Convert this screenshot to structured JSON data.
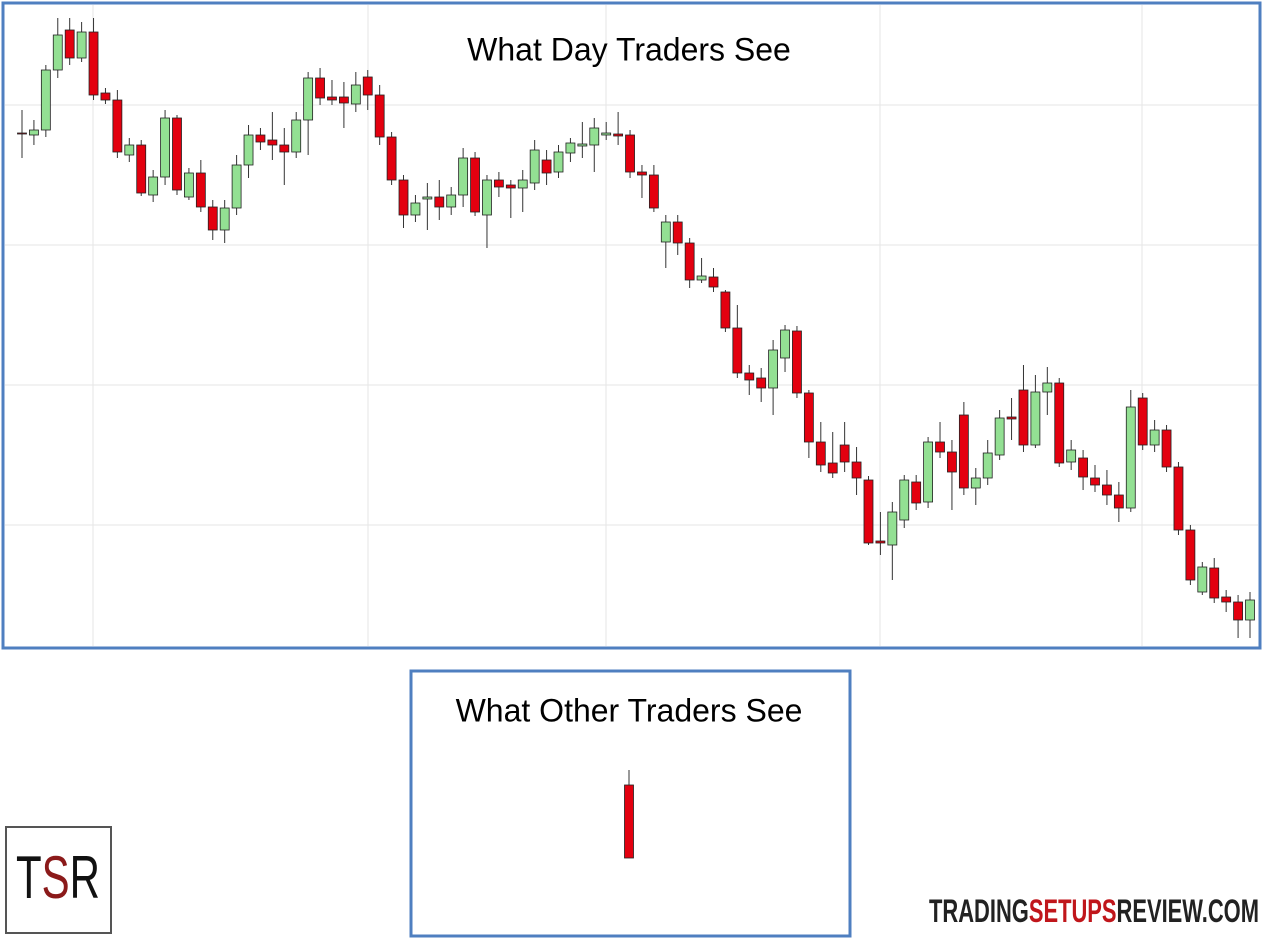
{
  "chart_data": [
    {
      "type": "candlestick",
      "title": "What Day Traders See",
      "open": [
        532,
        530,
        535,
        595,
        635,
        607,
        633,
        572,
        565,
        510,
        520,
        470,
        488,
        547,
        468,
        492,
        458,
        435,
        457,
        500,
        530,
        525,
        520,
        513,
        545,
        587,
        568,
        568,
        561,
        588,
        570,
        528,
        485,
        450,
        466,
        468,
        458,
        470,
        507,
        450,
        485,
        480,
        477,
        482,
        505,
        493,
        512,
        519,
        520,
        530,
        531,
        530,
        493,
        490,
        423,
        443,
        422,
        385,
        388,
        373,
        337,
        292,
        287,
        277,
        307,
        334,
        272,
        223,
        202,
        220,
        203,
        185,
        124,
        120,
        145,
        183,
        163,
        223,
        213,
        250,
        177,
        187,
        210,
        248,
        275,
        220,
        273,
        282,
        203,
        207,
        187,
        180,
        170,
        157,
        267,
        220,
        235,
        198,
        135,
        73,
        97,
        68,
        63,
        45
      ],
      "high": [
        555,
        545,
        600,
        647,
        647,
        643,
        647,
        577,
        575,
        527,
        525,
        495,
        555,
        550,
        497,
        505,
        465,
        465,
        510,
        540,
        537,
        553,
        537,
        553,
        593,
        597,
        585,
        583,
        593,
        595,
        580,
        533,
        490,
        470,
        482,
        485,
        478,
        517,
        513,
        490,
        493,
        485,
        495,
        525,
        515,
        520,
        527,
        543,
        547,
        543,
        553,
        535,
        500,
        500,
        450,
        450,
        427,
        407,
        397,
        375,
        360,
        300,
        297,
        325,
        340,
        339,
        275,
        243,
        233,
        243,
        218,
        189,
        153,
        163,
        190,
        190,
        228,
        243,
        225,
        263,
        197,
        225,
        255,
        267,
        300,
        290,
        298,
        287,
        225,
        215,
        200,
        195,
        183,
        275,
        272,
        245,
        240,
        203,
        140,
        103,
        107,
        75,
        70,
        73
      ],
      "low": [
        507,
        520,
        528,
        587,
        600,
        603,
        565,
        561,
        507,
        503,
        469,
        463,
        480,
        470,
        465,
        453,
        425,
        422,
        450,
        487,
        515,
        505,
        480,
        507,
        510,
        560,
        560,
        537,
        553,
        555,
        520,
        480,
        437,
        443,
        435,
        445,
        450,
        458,
        449,
        417,
        468,
        447,
        453,
        475,
        480,
        487,
        503,
        507,
        493,
        525,
        520,
        487,
        467,
        453,
        397,
        410,
        377,
        382,
        373,
        333,
        287,
        270,
        263,
        250,
        293,
        267,
        207,
        193,
        187,
        193,
        170,
        120,
        110,
        85,
        137,
        155,
        157,
        207,
        155,
        170,
        160,
        180,
        205,
        225,
        213,
        217,
        250,
        198,
        195,
        175,
        173,
        160,
        143,
        153,
        215,
        213,
        193,
        130,
        80,
        70,
        62,
        53,
        27,
        27
      ],
      "close": [
        531,
        535,
        595,
        630,
        607,
        633,
        570,
        565,
        513,
        520,
        472,
        488,
        547,
        475,
        492,
        458,
        435,
        457,
        500,
        530,
        523,
        520,
        513,
        545,
        587,
        567,
        565,
        562,
        580,
        570,
        528,
        485,
        450,
        462,
        468,
        458,
        470,
        507,
        453,
        485,
        478,
        477,
        485,
        515,
        492,
        513,
        522,
        521,
        537,
        532,
        529,
        493,
        490,
        457,
        443,
        422,
        385,
        389,
        378,
        337,
        292,
        285,
        277,
        315,
        335,
        272,
        223,
        200,
        192,
        203,
        187,
        122,
        122,
        153,
        185,
        162,
        223,
        213,
        193,
        177,
        187,
        212,
        247,
        246,
        220,
        273,
        282,
        202,
        215,
        188,
        180,
        170,
        157,
        258,
        220,
        235,
        198,
        135,
        85,
        98,
        67,
        63,
        45,
        65
      ],
      "colors": {
        "up": "#93e093",
        "down": "#e3000f"
      },
      "ylim": [
        17,
        662
      ],
      "yticks": [
        140,
        280,
        420,
        560
      ],
      "grid": true
    },
    {
      "type": "candlestick",
      "title": "What Other Traders See",
      "open": [
        151
      ],
      "high": [
        166
      ],
      "low": [
        78
      ],
      "close": [
        78
      ],
      "colors": {
        "up": "#93e093",
        "down": "#e3000f"
      },
      "ylim": [
        0,
        265
      ]
    }
  ],
  "logo": [
    "T",
    "S",
    "R"
  ],
  "website": [
    "TRADING",
    "SETUPS",
    "REVIEW.COM"
  ]
}
